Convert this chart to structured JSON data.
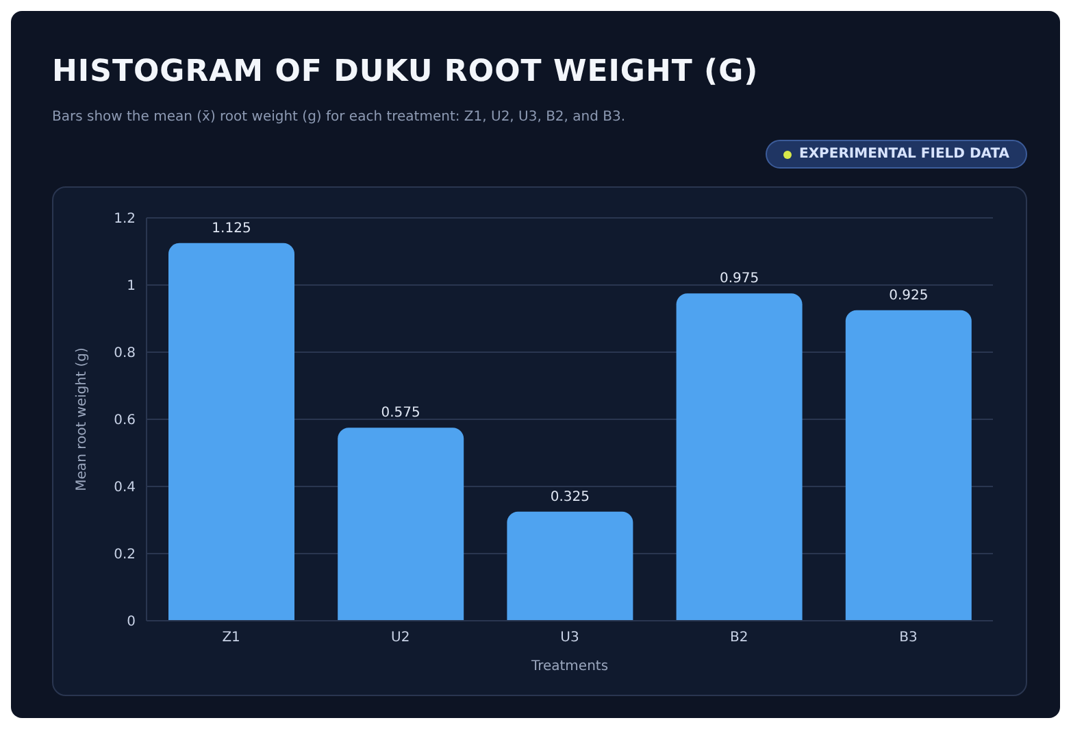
{
  "chart_data": {
    "type": "bar",
    "title": "HISTOGRAM OF DUKU ROOT WEIGHT (G)",
    "subtitle": "Bars show the mean (x̄) root weight (g) for each treatment: Z1, U2, U3, B2, and B3.",
    "annotations": [
      "EXPERIMENTAL FIELD DATA"
    ],
    "xlabel": "Treatments",
    "ylabel": "Mean root weight (g)",
    "categories": [
      "Z1",
      "U2",
      "U3",
      "B2",
      "B3"
    ],
    "values": [
      1.125,
      0.575,
      0.325,
      0.975,
      0.925
    ],
    "color": "#4fa3f0",
    "ylim": [
      0,
      1.2
    ],
    "yticks": [
      0,
      0.2,
      0.4,
      0.6,
      0.8,
      1.0,
      1.2
    ],
    "grid": "y",
    "data_labels": true
  }
}
